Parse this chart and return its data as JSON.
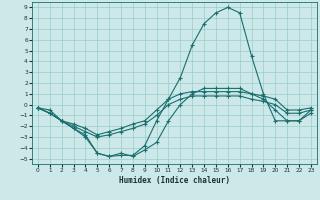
{
  "xlabel": "Humidex (Indice chaleur)",
  "ylabel": "",
  "background_color": "#cce8e8",
  "line_color": "#1a6e6e",
  "grid_color": "#99cccc",
  "xlim": [
    -0.5,
    23.5
  ],
  "ylim": [
    -5.5,
    9.5
  ],
  "xticks": [
    0,
    1,
    2,
    3,
    4,
    5,
    6,
    7,
    8,
    9,
    10,
    11,
    12,
    13,
    14,
    15,
    16,
    17,
    18,
    19,
    20,
    21,
    22,
    23
  ],
  "yticks": [
    -5,
    -4,
    -3,
    -2,
    -1,
    0,
    1,
    2,
    3,
    4,
    5,
    6,
    7,
    8,
    9
  ],
  "lines": [
    {
      "x": [
        0,
        1,
        2,
        3,
        4,
        5,
        6,
        7,
        8,
        9,
        10,
        11,
        12,
        13,
        14,
        15,
        16,
        17,
        18,
        19,
        20,
        21,
        22,
        23
      ],
      "y": [
        -0.3,
        -0.5,
        -1.5,
        -1.8,
        -2.2,
        -2.8,
        -2.5,
        -2.2,
        -1.8,
        -1.5,
        -0.5,
        0.5,
        1.0,
        1.2,
        1.2,
        1.2,
        1.2,
        1.2,
        1.0,
        0.8,
        0.5,
        -0.5,
        -0.5,
        -0.3
      ]
    },
    {
      "x": [
        0,
        1,
        2,
        3,
        4,
        5,
        6,
        7,
        8,
        9,
        10,
        11,
        12,
        13,
        14,
        15,
        16,
        17,
        18,
        19,
        20,
        21,
        22,
        23
      ],
      "y": [
        -0.3,
        -0.8,
        -1.5,
        -2.0,
        -2.5,
        -3.0,
        -2.8,
        -2.5,
        -2.2,
        -1.8,
        -1.0,
        0.0,
        0.5,
        0.8,
        0.8,
        0.8,
        0.8,
        0.8,
        0.5,
        0.3,
        0.0,
        -0.8,
        -0.8,
        -0.5
      ]
    },
    {
      "x": [
        0,
        1,
        2,
        3,
        4,
        5,
        6,
        7,
        8,
        9,
        10,
        11,
        12,
        13,
        14,
        15,
        16,
        17,
        18,
        19,
        20,
        21,
        22,
        23
      ],
      "y": [
        -0.3,
        -0.8,
        -1.5,
        -2.2,
        -3.0,
        -4.5,
        -4.8,
        -4.5,
        -4.8,
        -4.2,
        -3.5,
        -1.5,
        0.0,
        1.0,
        1.5,
        1.5,
        1.5,
        1.5,
        1.0,
        0.5,
        -0.5,
        -1.5,
        -1.5,
        -0.5
      ]
    },
    {
      "x": [
        0,
        1,
        2,
        3,
        4,
        5,
        6,
        7,
        8,
        9,
        10,
        11,
        12,
        13,
        14,
        15,
        16,
        17,
        18,
        19,
        20,
        21,
        22,
        23
      ],
      "y": [
        -0.3,
        -0.8,
        -1.5,
        -2.2,
        -2.8,
        -4.5,
        -4.8,
        -4.7,
        -4.7,
        -3.8,
        -1.5,
        0.5,
        2.5,
        5.5,
        7.5,
        8.5,
        9.0,
        8.5,
        4.5,
        1.0,
        -1.5,
        -1.5,
        -1.5,
        -0.8
      ]
    }
  ]
}
